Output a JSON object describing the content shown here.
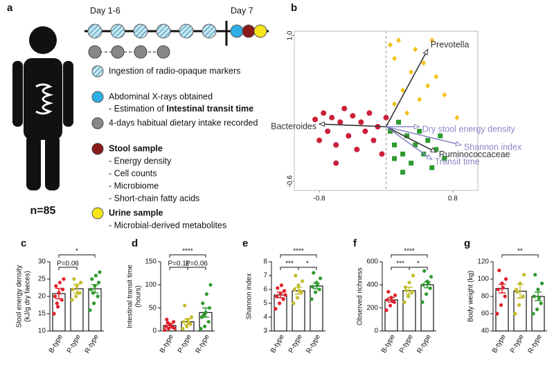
{
  "panel_a": {
    "label": "a",
    "day1": "Day 1-6",
    "day7": "Day 7",
    "n": "n=85",
    "legend": [
      "Ingestion of radio-opaque markers",
      "Abdominal X-rays obtained",
      "- Estimation of ",
      "Intestinal transit time",
      "4-days habitual dietary intake recorded",
      "Stool sample",
      "- Energy density",
      "- Cell counts",
      "- Microbiome",
      "- Short-chain fatty acids",
      "Urine sample",
      "- Microbial-derived metabolites"
    ]
  },
  "chart_data": [
    {
      "type": "scatter",
      "panel_label": "b",
      "xlim": [
        -1.1,
        1.1
      ],
      "ylim": [
        -0.7,
        1.05
      ],
      "xticks": [
        -0.8,
        0.8
      ],
      "yticks": [
        {
          "value": 1.0,
          "label": "1.0"
        },
        -0.6
      ],
      "series": [
        {
          "color": "#cc1f3a",
          "marker": "circle",
          "x": [
            -0.85,
            -0.75,
            -0.7,
            -0.65,
            -0.6,
            -0.55,
            -0.5,
            -0.45,
            -0.4,
            -0.35,
            -0.3,
            -0.25,
            -0.2,
            -0.15,
            -0.1,
            -0.05,
            0.0,
            -0.8,
            -0.6
          ],
          "y": [
            0.08,
            0.15,
            -0.05,
            0.1,
            -0.2,
            0.05,
            0.2,
            -0.1,
            0.12,
            -0.25,
            0.05,
            -0.05,
            0.15,
            -0.15,
            0.0,
            -0.3,
            0.1,
            -0.15,
            -0.4
          ]
        },
        {
          "color": "#f2c21b",
          "marker": "diamond",
          "x": [
            0.05,
            0.1,
            0.15,
            0.3,
            0.35,
            0.45,
            0.5,
            0.6,
            0.7,
            0.2,
            0.1,
            0.4,
            0.85,
            0.55,
            0.25
          ],
          "y": [
            0.9,
            0.75,
            0.95,
            0.6,
            0.85,
            0.7,
            0.45,
            0.55,
            0.35,
            0.4,
            0.25,
            0.3,
            0.1,
            0.95,
            0.15
          ]
        },
        {
          "color": "#2e9a2e",
          "marker": "square",
          "x": [
            0.05,
            0.1,
            0.15,
            0.2,
            0.25,
            0.3,
            0.35,
            0.4,
            0.45,
            0.5,
            0.55,
            0.6,
            0.65,
            0.7,
            0.2,
            0.1
          ],
          "y": [
            -0.05,
            -0.2,
            0.05,
            -0.3,
            -0.1,
            -0.4,
            -0.2,
            -0.05,
            -0.3,
            -0.15,
            -0.45,
            -0.25,
            -0.1,
            -0.35,
            -0.5,
            -0.35
          ]
        }
      ],
      "vectors": [
        {
          "label": "Prevotella",
          "x": 0.5,
          "y": 0.85,
          "color": "#333333"
        },
        {
          "label": "Bacteroides",
          "x": -0.8,
          "y": 0.03,
          "color": "#333333"
        },
        {
          "label": "Ruminococcaceae",
          "x": 0.6,
          "y": -0.28,
          "color": "#333333"
        },
        {
          "label": "Dry stool energy density",
          "x": 0.4,
          "y": 0.0,
          "color": "#8a87c8"
        },
        {
          "label": "Shannon index",
          "x": 0.9,
          "y": -0.2,
          "color": "#8a87c8"
        },
        {
          "label": "Transit time",
          "x": 0.55,
          "y": -0.36,
          "color": "#8a87c8"
        }
      ]
    },
    {
      "type": "bar",
      "panel_label": "c",
      "ylabel": [
        "Stool energy density",
        "(kJ/g dry faeces)"
      ],
      "categories": [
        "B-type",
        "P-type",
        "R-type"
      ],
      "colors": [
        "#e0202a",
        "#c3bd2c",
        "#2e9a2e"
      ],
      "ylim": [
        10,
        30
      ],
      "yticks": [
        10,
        15,
        20,
        25,
        30
      ],
      "values": [
        20.8,
        22.2,
        22.2
      ],
      "errors": [
        1.5,
        1.3,
        1.2
      ],
      "points": [
        [
          15,
          17,
          19,
          20,
          21,
          22,
          23,
          24,
          25,
          18
        ],
        [
          19,
          20,
          21,
          22,
          23,
          24,
          25,
          21
        ],
        [
          16,
          18,
          20,
          22,
          23,
          24,
          25,
          26,
          27,
          21
        ]
      ],
      "brackets": [
        {
          "from": 0,
          "to": 1,
          "label": "P=0.06"
        },
        {
          "from": 0,
          "to": 2,
          "label": "*"
        }
      ]
    },
    {
      "type": "bar",
      "panel_label": "d",
      "ylabel": [
        "Intestinal transit time",
        "(hours)"
      ],
      "categories": [
        "B-type",
        "P-type",
        "R-type"
      ],
      "colors": [
        "#e0202a",
        "#c3bd2c",
        "#2e9a2e"
      ],
      "ylim": [
        0,
        150
      ],
      "yticks": [
        0,
        50,
        100,
        150
      ],
      "values": [
        12,
        20,
        40
      ],
      "errors": [
        4,
        6,
        10
      ],
      "points": [
        [
          2,
          5,
          8,
          10,
          15,
          20,
          25,
          12,
          6,
          18
        ],
        [
          5,
          10,
          15,
          20,
          25,
          30,
          55,
          18
        ],
        [
          5,
          10,
          20,
          30,
          40,
          50,
          60,
          80,
          100,
          35
        ]
      ],
      "brackets": [
        {
          "from": 0,
          "to": 1,
          "label": "P=0.11"
        },
        {
          "from": 1,
          "to": 2,
          "label": "P=0.06"
        },
        {
          "from": 0,
          "to": 2,
          "label": "****"
        }
      ]
    },
    {
      "type": "bar",
      "panel_label": "e",
      "ylabel": [
        "Shannon index"
      ],
      "categories": [
        "B-type",
        "P-type",
        "R-type"
      ],
      "colors": [
        "#e0202a",
        "#c3bd2c",
        "#2e9a2e"
      ],
      "ylim": [
        3,
        8
      ],
      "yticks": [
        3,
        4,
        5,
        6,
        7,
        8
      ],
      "values": [
        5.6,
        5.9,
        6.25
      ],
      "errors": [
        0.2,
        0.25,
        0.2
      ],
      "points": [
        [
          4.6,
          5,
          5.3,
          5.5,
          5.7,
          5.9,
          6.1,
          6.3,
          5.6
        ],
        [
          5,
          5.4,
          5.8,
          6,
          6.3,
          6.6,
          7,
          5.9
        ],
        [
          5.3,
          5.8,
          6,
          6.2,
          6.5,
          6.8,
          7.2,
          6.3
        ]
      ],
      "brackets": [
        {
          "from": 0,
          "to": 1,
          "label": "***"
        },
        {
          "from": 1,
          "to": 2,
          "label": "*"
        },
        {
          "from": 0,
          "to": 2,
          "label": "****"
        }
      ]
    },
    {
      "type": "bar",
      "panel_label": "f",
      "ylabel": [
        "Observed richness"
      ],
      "categories": [
        "B-type",
        "P-type",
        "R-type"
      ],
      "colors": [
        "#e0202a",
        "#c3bd2c",
        "#2e9a2e"
      ],
      "ylim": [
        0,
        600
      ],
      "yticks": [
        0,
        200,
        400,
        600
      ],
      "values": [
        270,
        350,
        400
      ],
      "errors": [
        20,
        30,
        25
      ],
      "points": [
        [
          180,
          220,
          250,
          270,
          290,
          310,
          340,
          260
        ],
        [
          250,
          300,
          340,
          380,
          420,
          480,
          350
        ],
        [
          250,
          320,
          370,
          400,
          430,
          470,
          520,
          410
        ]
      ],
      "brackets": [
        {
          "from": 0,
          "to": 1,
          "label": "***"
        },
        {
          "from": 1,
          "to": 2,
          "label": "*"
        },
        {
          "from": 0,
          "to": 2,
          "label": "****"
        }
      ]
    },
    {
      "type": "bar",
      "panel_label": "g",
      "ylabel": [
        "Body weight (kg)"
      ],
      "categories": [
        "B-type",
        "P-type",
        "R-type"
      ],
      "colors": [
        "#e0202a",
        "#c3bd2c",
        "#2e9a2e"
      ],
      "ylim": [
        40,
        120
      ],
      "yticks": [
        40,
        60,
        80,
        100,
        120
      ],
      "values": [
        89,
        86,
        80
      ],
      "errors": [
        5,
        8,
        5
      ],
      "points": [
        [
          60,
          70,
          80,
          88,
          95,
          100,
          110,
          90
        ],
        [
          60,
          70,
          80,
          88,
          95,
          105,
          85
        ],
        [
          60,
          65,
          72,
          80,
          88,
          95,
          105,
          78
        ]
      ],
      "brackets": [
        {
          "from": 0,
          "to": 2,
          "label": "**"
        }
      ]
    }
  ]
}
